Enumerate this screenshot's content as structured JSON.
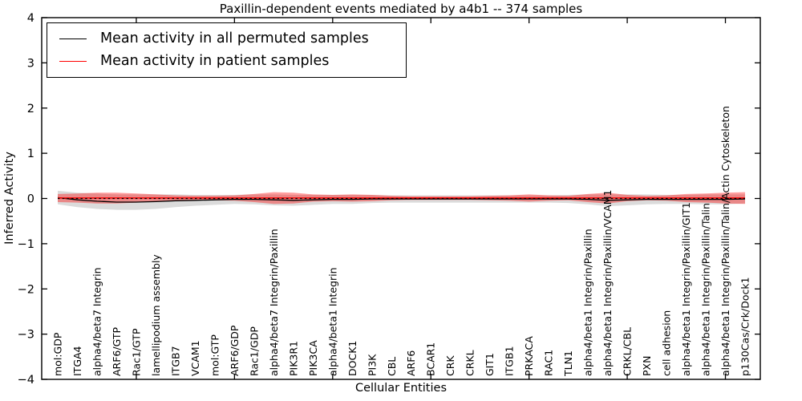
{
  "chart_data": {
    "type": "line",
    "title": "Paxillin-dependent events mediated by a4b1 -- 374 samples",
    "xlabel": "Cellular Entities",
    "ylabel": "Inferred Activity",
    "ylim": [
      -4,
      4
    ],
    "yticks": [
      -4,
      -3,
      -2,
      -1,
      0,
      1,
      2,
      3,
      4
    ],
    "xtick_major_indices": [
      4,
      9,
      14,
      19,
      24,
      29,
      34
    ],
    "grid": false,
    "legend_position": "upper left",
    "samples_note": "374 samples",
    "categories": [
      "mol:GDP",
      "ITGA4",
      "alpha4/beta7 Integrin",
      "ARF6/GTP",
      "Rac1/GTP",
      "lamellipodium assembly",
      "ITGB7",
      "VCAM1",
      "mol:GTP",
      "ARF6/GDP",
      "Rac1/GDP",
      "alpha4/beta7 Integrin/Paxillin",
      "PIK3R1",
      "PIK3CA",
      "alpha4/beta1 Integrin",
      "DOCK1",
      "PI3K",
      "CBL",
      "ARF6",
      "BCAR1",
      "CRK",
      "CRKL",
      "GIT1",
      "ITGB1",
      "PRKACA",
      "RAC1",
      "TLN1",
      "alpha4/beta1 Integrin/Paxillin",
      "alpha4/beta1 Integrin/Paxillin/VCAM1",
      "CRKL/CBL",
      "PXN",
      "cell adhesion",
      "alpha4/beta1 Integrin/Paxillin/GIT1",
      "alpha4/beta1 Integrin/Paxillin/Talin",
      "alpha4/beta1 Integrin/Paxillin/Talin/Actin Cytoskeleton",
      "p130Cas/Crk/Dock1"
    ],
    "series": [
      {
        "name": "Mean activity in all permuted samples",
        "color": "#000000",
        "band_color": "#999999",
        "band_opacity": 0.35,
        "values": [
          0.02,
          -0.03,
          -0.06,
          -0.08,
          -0.08,
          -0.07,
          -0.05,
          -0.04,
          -0.03,
          -0.02,
          -0.02,
          -0.03,
          -0.04,
          -0.03,
          -0.02,
          -0.02,
          -0.01,
          -0.01,
          -0.01,
          -0.01,
          -0.01,
          -0.01,
          -0.01,
          -0.01,
          -0.01,
          -0.01,
          -0.01,
          -0.02,
          -0.04,
          -0.03,
          -0.02,
          -0.02,
          -0.02,
          -0.02,
          -0.02,
          -0.01
        ],
        "band_halfwidth": [
          0.15,
          0.16,
          0.17,
          0.17,
          0.17,
          0.16,
          0.14,
          0.12,
          0.11,
          0.1,
          0.11,
          0.12,
          0.12,
          0.11,
          0.1,
          0.1,
          0.09,
          0.08,
          0.08,
          0.08,
          0.08,
          0.08,
          0.08,
          0.08,
          0.08,
          0.08,
          0.09,
          0.11,
          0.13,
          0.12,
          0.11,
          0.1,
          0.1,
          0.11,
          0.11,
          0.1
        ]
      },
      {
        "name": "Mean activity in patient samples",
        "color": "#ff0000",
        "band_color": "#ff0000",
        "band_opacity": 0.38,
        "values": [
          0.01,
          0.01,
          0.01,
          0.01,
          0.01,
          0.01,
          0.01,
          0.01,
          0.01,
          0.01,
          0.01,
          0.01,
          0.01,
          0.01,
          0.01,
          0.01,
          0.01,
          0.01,
          0.01,
          0.01,
          0.01,
          0.01,
          0.01,
          0.01,
          0.01,
          0.01,
          0.01,
          0.01,
          0.01,
          0.01,
          0.01,
          0.01,
          0.01,
          0.01,
          0.01,
          0.01
        ],
        "band_halfwidth": [
          0.09,
          0.1,
          0.12,
          0.12,
          0.1,
          0.08,
          0.06,
          0.05,
          0.05,
          0.06,
          0.09,
          0.13,
          0.12,
          0.08,
          0.07,
          0.08,
          0.07,
          0.05,
          0.04,
          0.04,
          0.04,
          0.04,
          0.05,
          0.06,
          0.08,
          0.06,
          0.05,
          0.09,
          0.12,
          0.07,
          0.05,
          0.06,
          0.09,
          0.1,
          0.12,
          0.13
        ]
      }
    ],
    "zero_line": {
      "y": 0,
      "style": "dashed",
      "color": "#000000"
    }
  }
}
